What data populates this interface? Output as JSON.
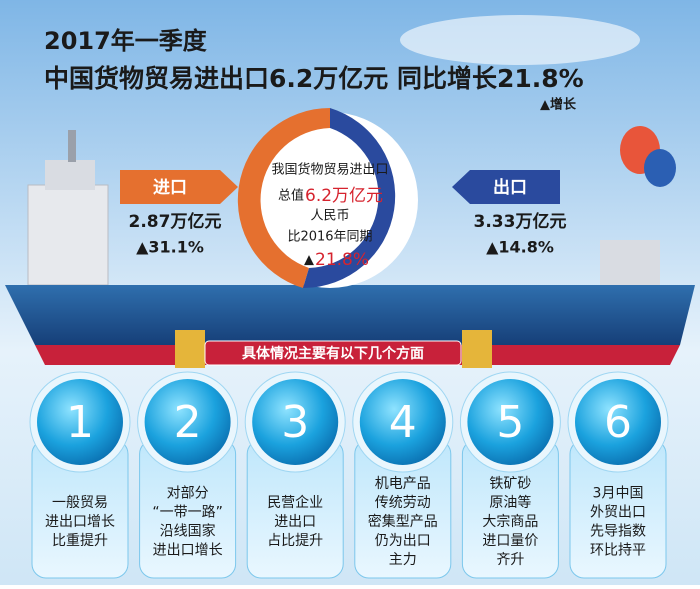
{
  "header": {
    "title_line1": "2017年一季度",
    "title_line2": "中国货物贸易进出口6.2万亿元  同比增长21.8%",
    "legend": "▲增长"
  },
  "import": {
    "label": "进口",
    "amount": "2.87万亿元",
    "growth": "▲31.1%"
  },
  "export": {
    "label": "出口",
    "amount": "3.33万亿元",
    "growth": "▲14.8%"
  },
  "center": {
    "line1": "我国货物贸易进出口",
    "line2_prefix": "总值",
    "line2_value": "6.2万亿元",
    "line3": "人民币",
    "line4": "比2016年同期",
    "line5_arrow": "▲",
    "line5_value": "21.8%"
  },
  "banner": "具体情况主要有以下几个方面",
  "items": [
    {
      "number": "1",
      "lines": [
        "一般贸易",
        "进出口增长",
        "比重提升"
      ]
    },
    {
      "number": "2",
      "lines": [
        "对部分",
        "“一带一路”",
        "沿线国家",
        "进出口增长"
      ]
    },
    {
      "number": "3",
      "lines": [
        "民营企业",
        "进出口",
        "占比提升"
      ]
    },
    {
      "number": "4",
      "lines": [
        "机电产品",
        "传统劳动",
        "密集型产品",
        "仍为出口",
        "主力"
      ]
    },
    {
      "number": "5",
      "lines": [
        "铁矿砂",
        "原油等",
        "大宗商品",
        "进口量价",
        "齐升"
      ]
    },
    {
      "number": "6",
      "lines": [
        "3月中国",
        "外贸出口",
        "先导指数",
        "环比持平"
      ]
    }
  ]
}
